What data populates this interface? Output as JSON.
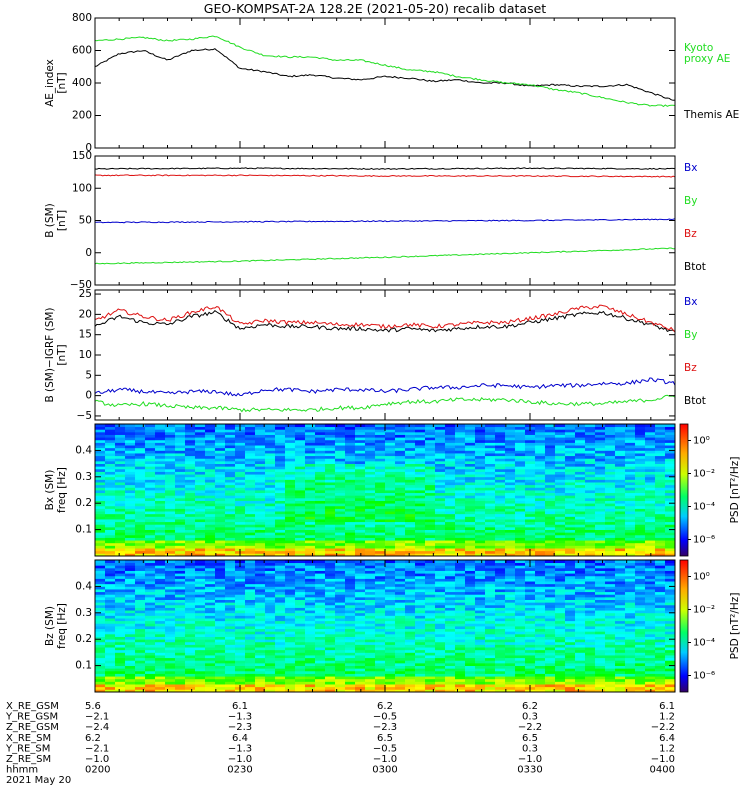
{
  "title": "GEO-KOMPSAT-2A 128.2E (2021-05-20) recalib dataset",
  "colors": {
    "black": "#000000",
    "green": "#22dd22",
    "red": "#dd1111",
    "blue": "#0000cc"
  },
  "chart_data": [
    {
      "type": "line",
      "ylabel": [
        "AE_index",
        "[nT]"
      ],
      "ylim": [
        0,
        800
      ],
      "yticks": [
        "0",
        "200",
        "400",
        "600",
        "800"
      ],
      "x_minutes": [
        0,
        5,
        10,
        15,
        20,
        25,
        30,
        35,
        40,
        45,
        50,
        55,
        60,
        65,
        70,
        75,
        80,
        85,
        90,
        95,
        100,
        105,
        110,
        115,
        120
      ],
      "legend": [
        {
          "lines": [
            "Kyoto",
            "proxy AE"
          ],
          "color": "#22dd22"
        },
        {
          "lines": [
            "Themis AE"
          ],
          "color": "#000000"
        }
      ],
      "series": [
        {
          "name": "Themis AE",
          "color": "#000000",
          "values": [
            500,
            580,
            600,
            540,
            600,
            610,
            490,
            470,
            440,
            450,
            430,
            420,
            440,
            430,
            410,
            420,
            400,
            400,
            380,
            390,
            380,
            380,
            390,
            340,
            290
          ]
        },
        {
          "name": "Kyoto proxy AE",
          "color": "#22dd22",
          "values": [
            660,
            670,
            680,
            660,
            670,
            690,
            620,
            570,
            560,
            560,
            540,
            540,
            510,
            480,
            470,
            440,
            420,
            400,
            390,
            360,
            340,
            310,
            280,
            260,
            260
          ]
        }
      ]
    },
    {
      "type": "line",
      "ylabel": [
        "B (SM)",
        "[nT]"
      ],
      "ylim": [
        -50,
        150
      ],
      "yticks": [
        "−50",
        "0",
        "50",
        "100",
        "150"
      ],
      "x_minutes": [
        0,
        30,
        60,
        90,
        120
      ],
      "legend": [
        {
          "lines": [
            "Bx"
          ],
          "color": "#0000cc"
        },
        {
          "lines": [
            "By"
          ],
          "color": "#22dd22"
        },
        {
          "lines": [
            "Bz"
          ],
          "color": "#dd1111"
        },
        {
          "lines": [
            "Btot"
          ],
          "color": "#000000"
        }
      ],
      "series": [
        {
          "name": "Btot",
          "color": "#000000",
          "values": [
            130,
            131,
            130,
            131,
            130
          ]
        },
        {
          "name": "Bz",
          "color": "#dd1111",
          "values": [
            120,
            120,
            119,
            119,
            118
          ]
        },
        {
          "name": "Bx",
          "color": "#0000cc",
          "values": [
            47,
            48,
            49,
            50,
            52
          ]
        },
        {
          "name": "By",
          "color": "#22dd22",
          "values": [
            -17,
            -13,
            -7,
            0,
            7
          ]
        }
      ]
    },
    {
      "type": "line",
      "ylabel": [
        "B (SM)−IGRF (SM)",
        "[nT]"
      ],
      "ylim": [
        -6,
        26
      ],
      "yticks": [
        "−5",
        "0",
        "5",
        "10",
        "15",
        "20",
        "25"
      ],
      "x_minutes": [
        0,
        5,
        10,
        15,
        20,
        25,
        30,
        35,
        40,
        45,
        50,
        55,
        60,
        65,
        70,
        75,
        80,
        85,
        90,
        95,
        100,
        105,
        110,
        115,
        120
      ],
      "legend": [
        {
          "lines": [
            "Bx"
          ],
          "color": "#0000cc"
        },
        {
          "lines": [
            "By"
          ],
          "color": "#22dd22"
        },
        {
          "lines": [
            "Bz"
          ],
          "color": "#dd1111"
        },
        {
          "lines": [
            "Btot"
          ],
          "color": "#000000"
        }
      ],
      "series": [
        {
          "name": "Btot",
          "color": "#000000",
          "values": [
            17,
            19.5,
            18,
            17.5,
            19.5,
            20.5,
            16.5,
            17.5,
            17,
            17,
            16.5,
            16.5,
            16,
            16.5,
            16,
            16.5,
            17,
            17,
            18,
            19,
            20,
            20.5,
            19,
            17.5,
            15.5
          ]
        },
        {
          "name": "Bz",
          "color": "#dd1111",
          "values": [
            18.5,
            21,
            19.5,
            18.5,
            20.5,
            22,
            17.5,
            18.5,
            18,
            18,
            17.5,
            17.5,
            17,
            17.5,
            17,
            17.5,
            18,
            18,
            19,
            20,
            21.5,
            22,
            20,
            18,
            16
          ]
        },
        {
          "name": "Bx",
          "color": "#0000cc",
          "values": [
            0.5,
            1.5,
            1,
            0.5,
            1,
            1,
            0,
            1.5,
            1.5,
            1,
            1.5,
            1.5,
            1,
            1.5,
            2,
            2,
            2.5,
            2.5,
            2,
            2.5,
            2.5,
            3,
            3,
            4,
            3
          ]
        },
        {
          "name": "By",
          "color": "#22dd22",
          "values": [
            -1.5,
            -2.5,
            -2,
            -2.5,
            -3,
            -3,
            -3.5,
            -3.5,
            -3.5,
            -3.5,
            -3,
            -3,
            -2,
            -1.5,
            -1.5,
            -1,
            -1,
            -1,
            -1.5,
            -2,
            -2,
            -2,
            -1.5,
            -1,
            0
          ]
        }
      ]
    },
    {
      "type": "heatmap",
      "ylabel": [
        "Bx (SM)",
        "freq [Hz]"
      ],
      "ylim": [
        0,
        0.5
      ],
      "yticks": [
        "0.1",
        "0.2",
        "0.3",
        "0.4"
      ],
      "colorbar": {
        "label": "PSD [nT²/Hz]",
        "ticks": [
          "10⁰",
          "10⁻²",
          "10⁻⁴",
          "10⁻⁶"
        ],
        "range_log10": [
          -7,
          1
        ]
      }
    },
    {
      "type": "heatmap",
      "ylabel": [
        "Bz (SM)",
        "freq [Hz]"
      ],
      "ylim": [
        0,
        0.5
      ],
      "yticks": [
        "0.1",
        "0.2",
        "0.3",
        "0.4"
      ],
      "colorbar": {
        "label": "PSD [nT²/Hz]",
        "ticks": [
          "10⁰",
          "10⁻²",
          "10⁻⁴",
          "10⁻⁶"
        ],
        "range_log10": [
          -7,
          1
        ]
      }
    }
  ],
  "ephemeris": {
    "row_labels": [
      "X_RE_GSM",
      "Y_RE_GSM",
      "Z_RE_GSM",
      "X_RE_SM",
      "Y_RE_SM",
      "Z_RE_SM",
      "hhmm"
    ],
    "columns": [
      [
        "5.6",
        "−2.1",
        "−2.4",
        "6.2",
        "−2.1",
        "−1.0",
        "0200"
      ],
      [
        "6.1",
        "−1.3",
        "−2.3",
        "6.4",
        "−1.3",
        "−1.0",
        "0230"
      ],
      [
        "6.2",
        "−0.5",
        "−2.3",
        "6.5",
        "−0.5",
        "−1.0",
        "0300"
      ],
      [
        "6.2",
        "0.3",
        "−2.2",
        "6.5",
        "0.3",
        "−1.0",
        "0330"
      ],
      [
        "6.1",
        "1.2",
        "−2.2",
        "6.4",
        "1.2",
        "−1.0",
        "0400"
      ]
    ],
    "date": "2021 May 20"
  }
}
